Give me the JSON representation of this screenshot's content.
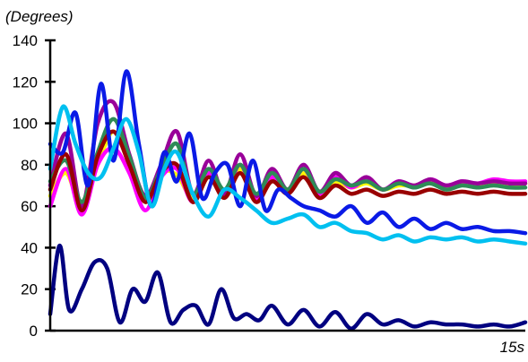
{
  "chart_data": {
    "type": "line",
    "title": "",
    "ylabel": "(Degrees)",
    "xlabel": "",
    "x_end_label": "15s",
    "xlim": [
      0,
      15
    ],
    "ylim": [
      0,
      140
    ],
    "yticks": [
      0,
      20,
      40,
      60,
      80,
      100,
      120,
      140
    ],
    "grid": false,
    "legend": "none",
    "series": [
      {
        "color": "#FFFF00",
        "x": [
          0,
          0.5,
          1,
          1.5,
          2,
          2.5,
          3,
          3.5,
          4,
          4.5,
          5,
          5.5,
          6,
          6.5,
          7,
          7.5,
          8,
          8.5,
          9,
          9.5,
          10,
          10.5,
          11,
          11.5,
          12,
          12.5,
          13,
          13.5,
          14,
          14.5,
          15
        ],
        "values": [
          65,
          76,
          60,
          80,
          96,
          80,
          62,
          76,
          75,
          64,
          76,
          66,
          78,
          64,
          72,
          68,
          76,
          67,
          72,
          69,
          71,
          68,
          70,
          70,
          72,
          69,
          71,
          70,
          71,
          70,
          71
        ]
      },
      {
        "color": "#FF00FF",
        "x": [
          0,
          0.5,
          1,
          1.5,
          2,
          2.5,
          3,
          3.5,
          4,
          4.5,
          5,
          5.5,
          6,
          6.5,
          7,
          7.5,
          8,
          8.5,
          9,
          9.5,
          10,
          10.5,
          11,
          11.5,
          12,
          12.5,
          13,
          13.5,
          14,
          14.5,
          15
        ],
        "values": [
          60,
          78,
          56,
          80,
          88,
          76,
          58,
          74,
          78,
          62,
          76,
          65,
          80,
          63,
          74,
          67,
          78,
          66,
          74,
          69,
          73,
          68,
          72,
          69,
          73,
          70,
          72,
          71,
          73,
          72,
          72
        ]
      },
      {
        "color": "#990099",
        "x": [
          0,
          0.5,
          1,
          1.5,
          2,
          2.5,
          3,
          3.5,
          4,
          4.5,
          5,
          5.5,
          6,
          6.5,
          7,
          7.5,
          8,
          8.5,
          9,
          9.5,
          10,
          10.5,
          11,
          11.5,
          12,
          12.5,
          13,
          13.5,
          14,
          14.5,
          15
        ],
        "values": [
          70,
          95,
          60,
          100,
          110,
          85,
          65,
          80,
          96,
          66,
          82,
          66,
          85,
          65,
          78,
          68,
          80,
          67,
          76,
          70,
          74,
          68,
          72,
          70,
          73,
          70,
          72,
          71,
          72,
          71,
          71
        ]
      },
      {
        "color": "#2E8B57",
        "x": [
          0,
          0.5,
          1,
          1.5,
          2,
          2.5,
          3,
          3.5,
          4,
          4.5,
          5,
          5.5,
          6,
          6.5,
          7,
          7.5,
          8,
          8.5,
          9,
          9.5,
          10,
          10.5,
          11,
          11.5,
          12,
          12.5,
          13,
          13.5,
          14,
          14.5,
          15
        ],
        "values": [
          72,
          82,
          62,
          86,
          102,
          84,
          64,
          78,
          90,
          66,
          78,
          68,
          80,
          66,
          76,
          68,
          78,
          67,
          73,
          70,
          72,
          68,
          71,
          69,
          71,
          68,
          70,
          69,
          70,
          69,
          69
        ]
      },
      {
        "color": "#990000",
        "x": [
          0,
          0.5,
          1,
          1.5,
          2,
          2.5,
          3,
          3.5,
          4,
          4.5,
          5,
          5.5,
          6,
          6.5,
          7,
          7.5,
          8,
          8.5,
          9,
          9.5,
          10,
          10.5,
          11,
          11.5,
          12,
          12.5,
          13,
          13.5,
          14,
          14.5,
          15
        ],
        "values": [
          68,
          85,
          58,
          84,
          96,
          80,
          62,
          76,
          80,
          62,
          74,
          64,
          76,
          62,
          72,
          66,
          74,
          64,
          70,
          66,
          68,
          65,
          67,
          66,
          68,
          66,
          67,
          66,
          67,
          66,
          66
        ]
      },
      {
        "color": "#0A1AE6",
        "x": [
          0,
          0.4,
          0.8,
          1.2,
          1.6,
          2,
          2.4,
          2.8,
          3.2,
          3.6,
          4,
          4.4,
          4.8,
          5.2,
          5.6,
          6,
          6.4,
          6.8,
          7.2,
          7.6,
          8,
          8.5,
          9,
          9.5,
          10,
          10.5,
          11,
          11.5,
          12,
          12.5,
          13,
          13.5,
          14,
          14.5,
          15
        ],
        "values": [
          90,
          86,
          105,
          70,
          119,
          82,
          125,
          90,
          60,
          86,
          72,
          95,
          64,
          76,
          80,
          60,
          82,
          58,
          68,
          64,
          60,
          58,
          55,
          60,
          52,
          57,
          50,
          54,
          49,
          52,
          49,
          50,
          48,
          48,
          47
        ]
      },
      {
        "color": "#00C0F0",
        "x": [
          0,
          0.4,
          0.8,
          1.2,
          1.6,
          2,
          2.4,
          2.8,
          3.2,
          3.6,
          4,
          4.5,
          5,
          5.5,
          6,
          6.5,
          7,
          7.5,
          8,
          8.5,
          9,
          9.5,
          10,
          10.5,
          11,
          11.5,
          12,
          12.5,
          13,
          13.5,
          14,
          14.5,
          15
        ],
        "values": [
          78,
          108,
          90,
          76,
          74,
          88,
          102,
          86,
          60,
          78,
          86,
          66,
          55,
          68,
          64,
          58,
          52,
          54,
          56,
          50,
          52,
          48,
          47,
          44,
          46,
          43,
          45,
          44,
          45,
          43,
          44,
          43,
          42
        ]
      },
      {
        "color": "#000080",
        "x": [
          0,
          0.3,
          0.6,
          1,
          1.4,
          1.8,
          2.2,
          2.6,
          3,
          3.4,
          3.8,
          4.2,
          4.6,
          5,
          5.4,
          5.8,
          6.2,
          6.6,
          7,
          7.5,
          8,
          8.5,
          9,
          9.5,
          10,
          10.5,
          11,
          11.5,
          12,
          12.5,
          13,
          13.5,
          14,
          14.5,
          15
        ],
        "values": [
          8,
          41,
          10,
          20,
          33,
          30,
          4,
          20,
          14,
          28,
          4,
          10,
          12,
          3,
          20,
          6,
          8,
          5,
          12,
          3,
          10,
          2,
          9,
          1,
          8,
          3,
          5,
          2,
          4,
          3,
          3,
          2,
          3,
          2,
          4
        ]
      }
    ]
  }
}
